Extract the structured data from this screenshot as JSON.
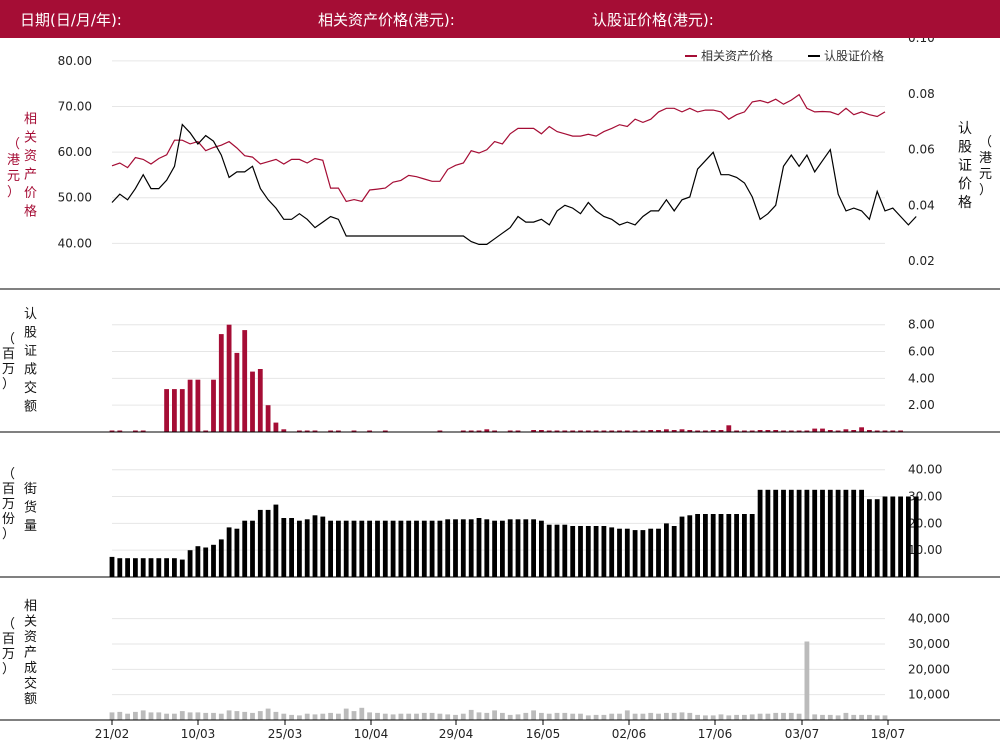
{
  "header": {
    "date_label": "日期(日/月/年):",
    "asset_price_label": "相关资产价格(港元):",
    "warrant_price_label": "认股证价格(港元):"
  },
  "colors": {
    "header_bg": "#a50d35",
    "asset_line": "#a50d35",
    "warrant_line": "#000000",
    "warrant_bar": "#a50d35",
    "street_bar": "#000000",
    "asset_bar": "#bbbbbb"
  },
  "chart_data": [
    {
      "type": "line",
      "legend": [
        "相关资产价格",
        "认股证价格"
      ],
      "legend_position": "top-right",
      "left_axis_label": [
        "相",
        "关",
        "资",
        "产",
        "价",
        "格"
      ],
      "left_axis_unit": [
        "（",
        "港",
        "元",
        "）"
      ],
      "right_axis_label": [
        "认",
        "股",
        "证",
        "价",
        "格"
      ],
      "right_axis_unit": [
        "（",
        "港",
        "元",
        "）"
      ],
      "ylim_left": [
        30,
        85
      ],
      "yticks_left": [
        "80.00",
        "70.00",
        "60.00",
        "50.00",
        "40.00"
      ],
      "ylim_right": [
        0.01,
        0.1
      ],
      "yticks_right": [
        "0.10",
        "0.08",
        "0.06",
        "0.04",
        "0.02"
      ],
      "series": [
        {
          "name": "相关资产价格",
          "axis": "left",
          "values": [
            57.0,
            57.6,
            56.6,
            58.8,
            58.4,
            57.4,
            58.6,
            59.4,
            62.6,
            62.6,
            61.8,
            62.3,
            60.3,
            61.0,
            61.5,
            62.3,
            60.9,
            59.2,
            58.9,
            57.4,
            57.9,
            58.4,
            57.4,
            58.4,
            58.4,
            57.6,
            58.6,
            58.2,
            52.1,
            52.1,
            49.2,
            49.6,
            49.2,
            51.7,
            51.9,
            52.1,
            53.4,
            53.8,
            54.9,
            54.6,
            54.1,
            53.6,
            53.6,
            56.2,
            57.1,
            57.6,
            60.3,
            59.8,
            60.5,
            62.3,
            61.8,
            64.0,
            65.2,
            65.2,
            65.2,
            64.0,
            65.6,
            64.5,
            64.0,
            63.5,
            63.5,
            63.9,
            63.5,
            64.5,
            65.2,
            66.0,
            65.6,
            67.2,
            66.5,
            67.2,
            68.8,
            69.6,
            69.6,
            68.8,
            69.6,
            68.8,
            69.2,
            69.2,
            68.8,
            67.2,
            68.2,
            68.8,
            71.0,
            71.3,
            70.8,
            71.6,
            70.5,
            71.4,
            72.6,
            69.6,
            68.8,
            68.9,
            68.8,
            68.2,
            69.6,
            68.2,
            68.8,
            68.2,
            67.8,
            68.8
          ]
        },
        {
          "name": "认股证价格",
          "axis": "right",
          "values": [
            0.041,
            0.044,
            0.042,
            0.046,
            0.051,
            0.046,
            0.046,
            0.049,
            0.054,
            0.069,
            0.066,
            0.062,
            0.065,
            0.063,
            0.058,
            0.05,
            0.052,
            0.052,
            0.054,
            0.046,
            0.042,
            0.039,
            0.035,
            0.035,
            0.037,
            0.035,
            0.032,
            0.034,
            0.036,
            0.035,
            0.029,
            0.029,
            0.029,
            0.029,
            0.029,
            0.029,
            0.029,
            0.029,
            0.029,
            0.029,
            0.029,
            0.029,
            0.029,
            0.029,
            0.029,
            0.029,
            0.027,
            0.026,
            0.026,
            0.028,
            0.03,
            0.032,
            0.036,
            0.034,
            0.034,
            0.035,
            0.033,
            0.038,
            0.04,
            0.039,
            0.037,
            0.041,
            0.038,
            0.036,
            0.035,
            0.033,
            0.034,
            0.033,
            0.036,
            0.038,
            0.038,
            0.042,
            0.038,
            0.042,
            0.043,
            0.053,
            0.056,
            0.059,
            0.051,
            0.051,
            0.05,
            0.048,
            0.043,
            0.035,
            0.037,
            0.04,
            0.054,
            0.058,
            0.054,
            0.058,
            0.052,
            0.056,
            0.06,
            0.044,
            0.038,
            0.039,
            0.038,
            0.035,
            0.045,
            0.038,
            0.039,
            0.036,
            0.033,
            0.036
          ]
        }
      ]
    },
    {
      "type": "bar",
      "left_axis_label": [
        "认",
        "股",
        "证",
        "成",
        "交",
        "额"
      ],
      "left_axis_unit": [
        "（",
        "百",
        "万",
        "）"
      ],
      "ylim": [
        0,
        8.5
      ],
      "yticks": [
        "8.00",
        "6.00",
        "4.00",
        "2.00"
      ],
      "values": [
        0.05,
        0.05,
        0.0,
        0.05,
        0.05,
        0.0,
        0.0,
        3.2,
        3.2,
        3.2,
        3.9,
        3.9,
        0.05,
        3.9,
        7.3,
        8.0,
        5.9,
        7.6,
        4.5,
        4.7,
        2.0,
        0.7,
        0.2,
        0.0,
        0.05,
        0.05,
        0.05,
        0.0,
        0.05,
        0.05,
        0.0,
        0.05,
        0.0,
        0.05,
        0.0,
        0.05,
        0.0,
        0.0,
        0.0,
        0.0,
        0.0,
        0.0,
        0.05,
        0.0,
        0.0,
        0.05,
        0.1,
        0.1,
        0.2,
        0.1,
        0.0,
        0.05,
        0.05,
        0.0,
        0.15,
        0.15,
        0.1,
        0.1,
        0.1,
        0.1,
        0.1,
        0.1,
        0.1,
        0.1,
        0.1,
        0.1,
        0.1,
        0.1,
        0.1,
        0.15,
        0.15,
        0.2,
        0.15,
        0.2,
        0.15,
        0.1,
        0.1,
        0.15,
        0.15,
        0.5,
        0.1,
        0.1,
        0.1,
        0.15,
        0.15,
        0.15,
        0.1,
        0.1,
        0.1,
        0.1,
        0.25,
        0.25,
        0.15,
        0.1,
        0.2,
        0.15,
        0.35,
        0.15,
        0.1,
        0.1,
        0.1,
        0.1
      ]
    },
    {
      "type": "bar",
      "left_axis_label": [
        "街",
        "货",
        "量"
      ],
      "left_axis_unit": [
        "（",
        "百",
        "万",
        "份",
        "）"
      ],
      "ylim": [
        0,
        42.5
      ],
      "yticks": [
        "40.00",
        "30.00",
        "20.00",
        "10.00"
      ],
      "values": [
        7.5,
        7.0,
        7.0,
        7.0,
        7.0,
        7.0,
        7.0,
        7.0,
        7.0,
        6.5,
        10.0,
        11.5,
        11.0,
        12.0,
        14.0,
        18.5,
        18.0,
        21.0,
        21.0,
        25.0,
        25.0,
        27.0,
        22.0,
        22.0,
        21.0,
        21.5,
        23.0,
        22.5,
        21.0,
        21.0,
        21.0,
        21.0,
        21.0,
        21.0,
        21.0,
        21.0,
        21.0,
        21.0,
        21.0,
        21.0,
        21.0,
        21.0,
        21.0,
        21.5,
        21.5,
        21.5,
        21.5,
        22.0,
        21.5,
        21.0,
        21.0,
        21.5,
        21.5,
        21.5,
        21.5,
        21.0,
        19.5,
        19.5,
        19.5,
        19.0,
        19.0,
        19.0,
        19.0,
        19.0,
        18.5,
        18.0,
        18.0,
        17.5,
        17.5,
        18.0,
        18.0,
        20.0,
        19.0,
        22.5,
        23.0,
        23.5,
        23.5,
        23.5,
        23.5,
        23.5,
        23.5,
        23.5,
        23.5,
        32.5,
        32.5,
        32.5,
        32.5,
        32.5,
        32.5,
        32.5,
        32.5,
        32.5,
        32.5,
        32.5,
        32.5,
        32.5,
        32.5,
        29.0,
        29.0,
        30.0,
        30.0,
        30.0,
        30.0,
        30.0
      ]
    },
    {
      "type": "bar",
      "left_axis_label": [
        "相",
        "关",
        "资",
        "产",
        "成",
        "交",
        "额"
      ],
      "left_axis_unit": [
        "（",
        "百",
        "万",
        "）"
      ],
      "ylim": [
        0,
        45000
      ],
      "yticks": [
        "40,000",
        "30,000",
        "20,000",
        "10,000"
      ],
      "x_tick_labels": [
        "21/02",
        "10/03",
        "25/03",
        "10/04",
        "29/04",
        "16/05",
        "02/06",
        "17/06",
        "03/07",
        "18/07"
      ],
      "values": [
        3000,
        3200,
        2500,
        3200,
        3800,
        3000,
        3000,
        2500,
        2500,
        3500,
        3000,
        3000,
        2800,
        2800,
        2500,
        3800,
        3500,
        3200,
        2800,
        3500,
        4500,
        3200,
        2500,
        2000,
        1800,
        2500,
        2200,
        2500,
        2800,
        2500,
        4500,
        3500,
        4800,
        3000,
        2800,
        2500,
        2200,
        2500,
        2500,
        2500,
        2800,
        2800,
        2500,
        2200,
        2000,
        2500,
        4000,
        3000,
        2800,
        3800,
        2800,
        2000,
        2200,
        2800,
        3800,
        2800,
        2500,
        2800,
        2800,
        2500,
        2500,
        1800,
        2000,
        2000,
        2500,
        2500,
        3800,
        2500,
        2500,
        2800,
        2500,
        2800,
        2800,
        3000,
        2800,
        2000,
        1800,
        1800,
        2200,
        1800,
        2000,
        2000,
        2200,
        2500,
        2500,
        2800,
        2800,
        2800,
        2500,
        31000,
        2200,
        2000,
        2000,
        1800,
        2800,
        2000,
        2000,
        2000,
        1800,
        1800
      ]
    }
  ]
}
